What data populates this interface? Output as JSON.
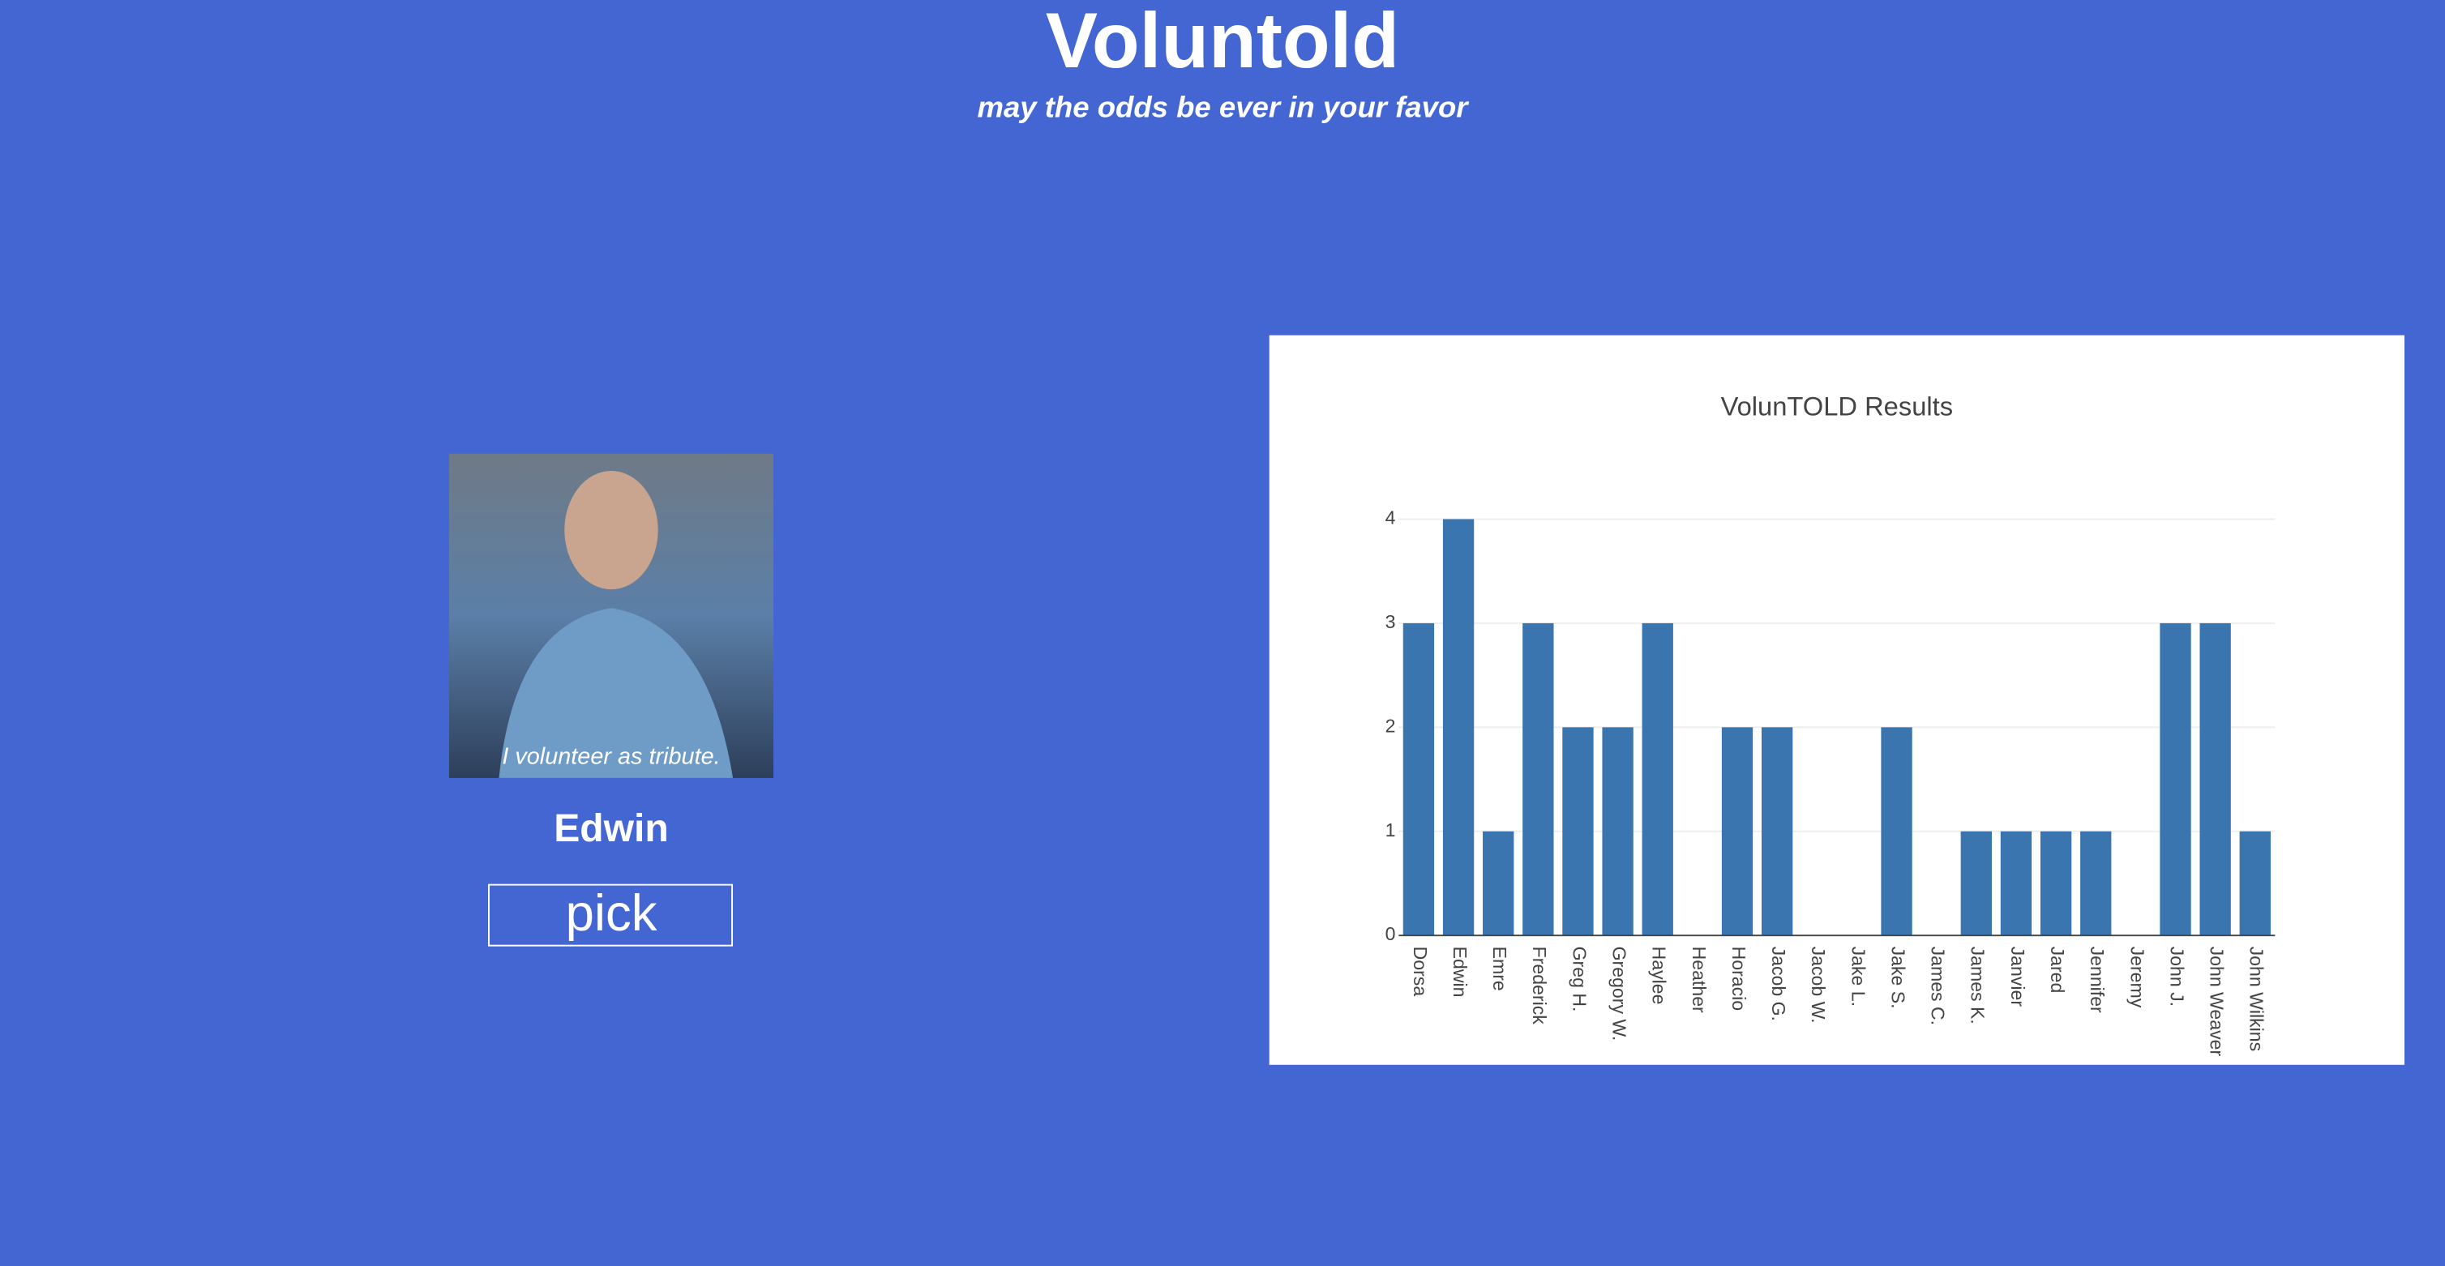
{
  "header": {
    "title": "Voluntold",
    "subtitle": "may the odds be ever in your favor"
  },
  "image": {
    "caption": "I volunteer as tribute."
  },
  "winner": "Edwin",
  "button": "pick",
  "chart_data": {
    "type": "bar",
    "title": "VolunTOLD Results",
    "categories": [
      "Dorsa",
      "Edwin",
      "Emre",
      "Frederick",
      "Greg H.",
      "Gregory W.",
      "Haylee",
      "Heather",
      "Horacio",
      "Jacob G.",
      "Jacob W.",
      "Jake L.",
      "Jake S.",
      "James C.",
      "James K.",
      "Janvier",
      "Jared",
      "Jennifer",
      "Jeremy",
      "John J.",
      "John Weaver",
      "John Wilkins"
    ],
    "values": [
      3,
      4,
      1,
      3,
      2,
      2,
      3,
      0,
      2,
      2,
      0,
      0,
      2,
      0,
      1,
      1,
      1,
      1,
      0,
      3,
      3,
      1
    ],
    "color": "#3a75af",
    "ylim": [
      0,
      4.2
    ],
    "yticks": [
      0,
      1,
      2,
      3,
      4
    ],
    "grid": true
  }
}
